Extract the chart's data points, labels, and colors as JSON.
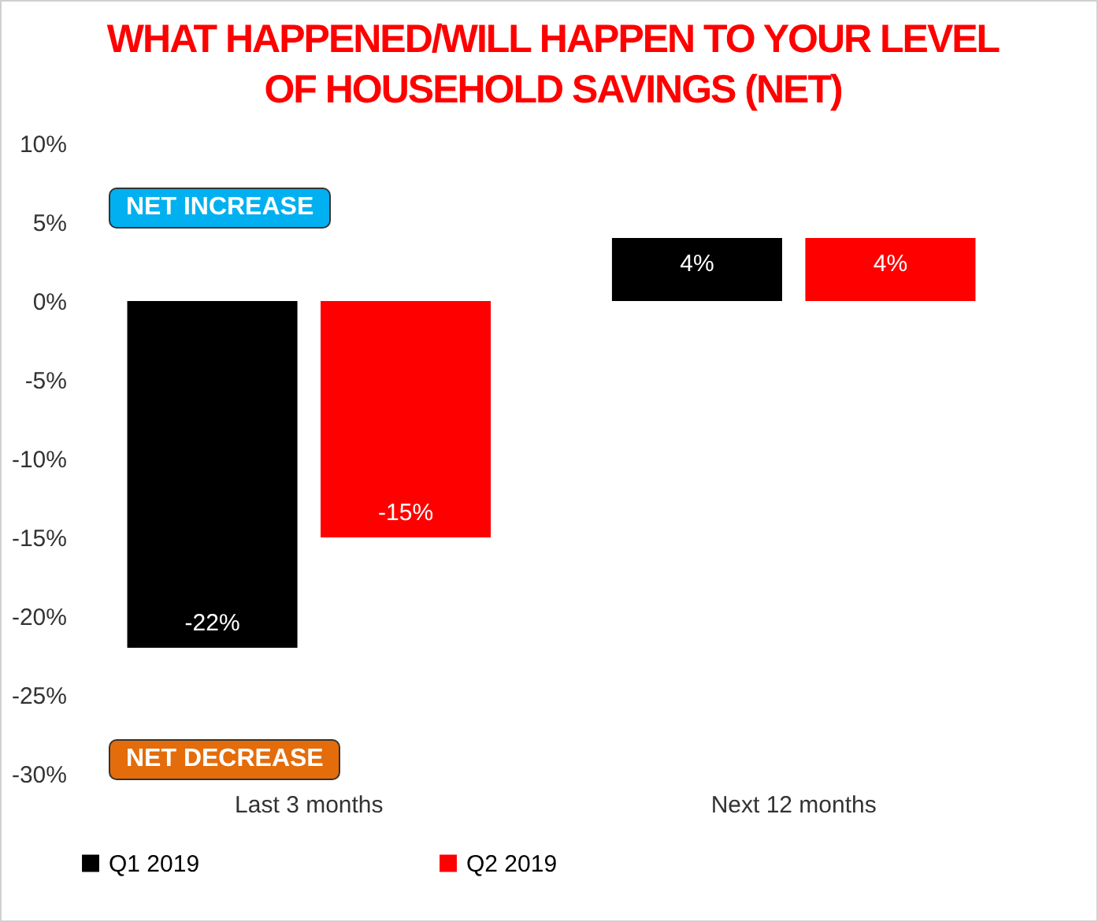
{
  "chart_data": {
    "type": "bar",
    "title": "WHAT HAPPENED/WILL HAPPEN TO YOUR LEVEL OF HOUSEHOLD SAVINGS (NET)",
    "categories": [
      "Last 3 months",
      "Next 12 months"
    ],
    "series": [
      {
        "name": "Q1 2019",
        "color": "#000000",
        "values": [
          -22,
          4
        ],
        "value_labels": [
          "-22%",
          "4%"
        ]
      },
      {
        "name": "Q2 2019",
        "color": "#ff0000",
        "values": [
          -15,
          4
        ],
        "value_labels": [
          "-15%",
          "4%"
        ]
      }
    ],
    "ylim": [
      -30,
      10
    ],
    "yticks": [
      {
        "value": -30,
        "label": "-30%"
      },
      {
        "value": -25,
        "label": "-25%"
      },
      {
        "value": -20,
        "label": "-20%"
      },
      {
        "value": -15,
        "label": "-15%"
      },
      {
        "value": -10,
        "label": "-10%"
      },
      {
        "value": -5,
        "label": "-5%"
      },
      {
        "value": 0,
        "label": "0%"
      },
      {
        "value": 5,
        "label": "5%"
      },
      {
        "value": 10,
        "label": "10%"
      }
    ],
    "annotations": [
      "NET INCREASE",
      "NET DECREASE"
    ],
    "grid": false,
    "legend": "bottom"
  }
}
